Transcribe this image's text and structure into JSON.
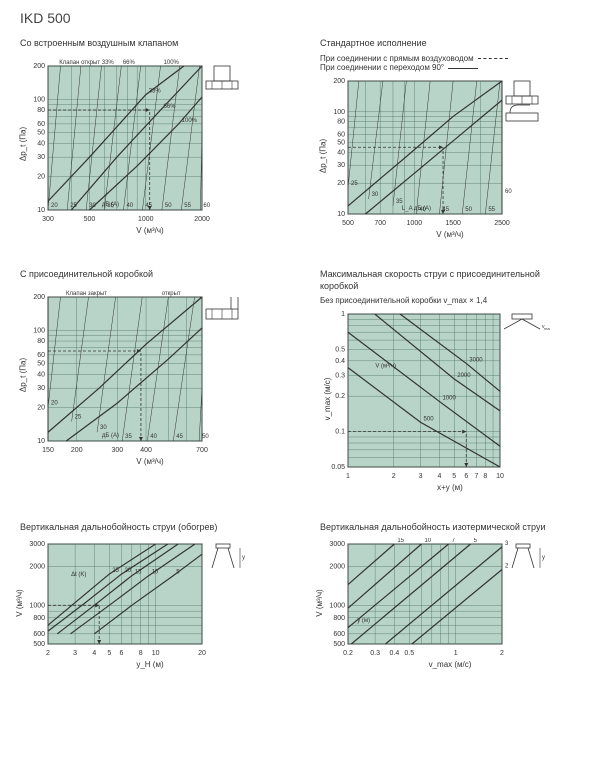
{
  "title": "IKD 500",
  "colors": {
    "grid_bg": "#b8d4c8",
    "grid_line": "#4a7060",
    "grid_border": "#333333",
    "curve": "#333333",
    "text": "#333333"
  },
  "charts": {
    "c1": {
      "title": "Со встроенным воздушным клапаном",
      "header_labels": [
        "Клапан открыт 33%",
        "66%",
        "100%"
      ],
      "ylabel": "Δp_t (Па)",
      "xlabel": "V (м³/ч)",
      "ytype": "log",
      "xtype": "log",
      "ylim": [
        10,
        200
      ],
      "xlim": [
        300,
        2000
      ],
      "yticks": [
        10,
        20,
        30,
        40,
        50,
        60,
        80,
        100,
        200
      ],
      "xticks": [
        300,
        500,
        1000,
        2000
      ],
      "series": [
        {
          "label": "33%",
          "points": [
            [
              300,
              12
            ],
            [
              500,
              30
            ],
            [
              1000,
              110
            ],
            [
              1600,
              200
            ]
          ]
        },
        {
          "label": "66%",
          "points": [
            [
              400,
              10
            ],
            [
              700,
              30
            ],
            [
              1200,
              80
            ],
            [
              2000,
              200
            ]
          ]
        },
        {
          "label": "100%",
          "points": [
            [
              500,
              10
            ],
            [
              900,
              25
            ],
            [
              1500,
              60
            ],
            [
              2000,
              105
            ]
          ]
        }
      ],
      "noise_curves": [
        {
          "label": "20",
          "points": [
            [
              300,
              10
            ],
            [
              350,
              200
            ]
          ]
        },
        {
          "label": "25",
          "points": [
            [
              380,
              10
            ],
            [
              450,
              200
            ]
          ]
        },
        {
          "label": "30",
          "points": [
            [
              480,
              10
            ],
            [
              580,
              200
            ]
          ]
        },
        {
          "label": "35",
          "points": [
            [
              600,
              10
            ],
            [
              740,
              200
            ]
          ]
        },
        {
          "label": "40",
          "points": [
            [
              760,
              10
            ],
            [
              940,
              200
            ]
          ]
        },
        {
          "label": "45",
          "points": [
            [
              960,
              10
            ],
            [
              1200,
              200
            ]
          ]
        },
        {
          "label": "50",
          "points": [
            [
              1220,
              10
            ],
            [
              1520,
              200
            ]
          ]
        },
        {
          "label": "55",
          "points": [
            [
              1550,
              10
            ],
            [
              1940,
              200
            ]
          ]
        },
        {
          "label": "60",
          "points": [
            [
              1960,
              10
            ],
            [
              2000,
              50
            ]
          ]
        }
      ],
      "dashed_example": {
        "h": [
          300,
          80,
          1050,
          80
        ],
        "v": [
          1050,
          10,
          1050,
          80
        ]
      },
      "db_label": "дБ (А)"
    },
    "c2": {
      "title": "Стандартное исполнение",
      "subtitle1": "При соединении с прямым воздуховодом",
      "subtitle2": "При соединении с переходом 90°",
      "ylabel": "Δp_t (Па)",
      "xlabel": "V (м³/ч)",
      "ytype": "log",
      "xtype": "log",
      "ylim": [
        10,
        200
      ],
      "xlim": [
        500,
        2500
      ],
      "yticks": [
        10,
        20,
        30,
        40,
        50,
        60,
        80,
        100,
        200
      ],
      "xticks": [
        500,
        700,
        1000,
        1500,
        2500
      ],
      "series": [
        {
          "style": "solid",
          "points": [
            [
              500,
              12
            ],
            [
              900,
              35
            ],
            [
              1500,
              90
            ],
            [
              2500,
              200
            ]
          ]
        },
        {
          "style": "solid",
          "points": [
            [
              600,
              10
            ],
            [
              1000,
              25
            ],
            [
              1700,
              65
            ],
            [
              2500,
              130
            ]
          ]
        }
      ],
      "noise_curves": [
        {
          "label": "25",
          "points": [
            [
              500,
              18
            ],
            [
              560,
              200
            ]
          ]
        },
        {
          "label": "30",
          "points": [
            [
              620,
              14
            ],
            [
              720,
              200
            ]
          ]
        },
        {
          "label": "35",
          "points": [
            [
              800,
              12
            ],
            [
              920,
              200
            ]
          ]
        },
        {
          "label": "40",
          "points": [
            [
              1020,
              10
            ],
            [
              1180,
              200
            ]
          ]
        },
        {
          "label": "45",
          "points": [
            [
              1300,
              10
            ],
            [
              1500,
              200
            ]
          ]
        },
        {
          "label": "50",
          "points": [
            [
              1650,
              10
            ],
            [
              1920,
              200
            ]
          ]
        },
        {
          "label": "55",
          "points": [
            [
              2100,
              10
            ],
            [
              2450,
              200
            ]
          ]
        },
        {
          "label": "60",
          "points": [
            [
              2500,
              15
            ],
            [
              2500,
              16
            ]
          ]
        }
      ],
      "dashed_example": {
        "h": [
          500,
          45,
          1350,
          45
        ],
        "v": [
          1350,
          10,
          1350,
          45
        ]
      },
      "db_label": "L_A дБ (А)"
    },
    "c3": {
      "title": "С присоединительной коробкой",
      "header_labels": [
        "Клапан закрыт",
        "открыт"
      ],
      "ylabel": "Δp_t (Па)",
      "xlabel": "V (м³/ч)",
      "ytype": "log",
      "xtype": "log",
      "ylim": [
        10,
        200
      ],
      "xlim": [
        150,
        700
      ],
      "yticks": [
        10,
        20,
        30,
        40,
        50,
        60,
        80,
        100,
        200
      ],
      "xticks": [
        150,
        200,
        300,
        400,
        700
      ],
      "series": [
        {
          "points": [
            [
              150,
              12
            ],
            [
              250,
              30
            ],
            [
              400,
              75
            ],
            [
              700,
              200
            ]
          ]
        },
        {
          "points": [
            [
              180,
              10
            ],
            [
              300,
              22
            ],
            [
              500,
              55
            ],
            [
              700,
              105
            ]
          ]
        }
      ],
      "noise_curves": [
        {
          "label": "20",
          "points": [
            [
              150,
              20
            ],
            [
              170,
              200
            ]
          ]
        },
        {
          "label": "25",
          "points": [
            [
              190,
              15
            ],
            [
              225,
              200
            ]
          ]
        },
        {
          "label": "30",
          "points": [
            [
              245,
              12
            ],
            [
              295,
              200
            ]
          ]
        },
        {
          "label": "35",
          "points": [
            [
              315,
              10
            ],
            [
              385,
              200
            ]
          ]
        },
        {
          "label": "40",
          "points": [
            [
              405,
              10
            ],
            [
              500,
              200
            ]
          ]
        },
        {
          "label": "45",
          "points": [
            [
              525,
              10
            ],
            [
              650,
              200
            ]
          ]
        },
        {
          "label": "50",
          "points": [
            [
              680,
              10
            ],
            [
              700,
              30
            ]
          ]
        }
      ],
      "dashed_example": {
        "h": [
          150,
          65,
          380,
          65
        ],
        "v": [
          380,
          10,
          380,
          65
        ]
      },
      "db_label": "дБ (А)"
    },
    "c4": {
      "title": "Максимальная скорость струи с присоединительной коробкой",
      "subtitle": "Без присоединительной коробки v_max × 1,4",
      "ylabel": "v_max (м/с)",
      "xlabel": "x+y (м)",
      "ytype": "log",
      "xtype": "log",
      "ylim": [
        0.05,
        1
      ],
      "xlim": [
        1,
        10
      ],
      "yticks": [
        0.05,
        0.1,
        0.2,
        0.3,
        0.4,
        0.5,
        1
      ],
      "xticks": [
        1,
        2,
        3,
        4,
        5,
        6,
        7,
        8,
        10
      ],
      "series": [
        {
          "label": "500",
          "points": [
            [
              1,
              0.35
            ],
            [
              3,
              0.12
            ],
            [
              10,
              0.05
            ]
          ]
        },
        {
          "label": "1000",
          "points": [
            [
              1,
              0.7
            ],
            [
              4,
              0.18
            ],
            [
              10,
              0.075
            ]
          ]
        },
        {
          "label": "2000",
          "points": [
            [
              1.5,
              1
            ],
            [
              5,
              0.28
            ],
            [
              10,
              0.15
            ]
          ]
        },
        {
          "label": "3000",
          "points": [
            [
              2.2,
              1
            ],
            [
              6,
              0.38
            ],
            [
              10,
              0.22
            ]
          ]
        }
      ],
      "v_label": "V (м³/ч)",
      "dashed_example": {
        "h": [
          1,
          0.1,
          6,
          0.1
        ],
        "v": [
          6,
          0.05,
          6,
          0.1
        ]
      }
    },
    "c5": {
      "title": "Вертикальная дальнобойность струи (обогрев)",
      "ylabel": "V (м³/ч)",
      "xlabel": "y_H (м)",
      "ytype": "log",
      "xtype": "log",
      "ylim": [
        500,
        3000
      ],
      "xlim": [
        2,
        20
      ],
      "yticks": [
        500,
        600,
        800,
        1000,
        2000,
        3000
      ],
      "xticks": [
        2,
        3,
        4,
        5,
        6,
        8,
        10,
        20
      ],
      "dt_label": "Δt (K)",
      "series": [
        {
          "label": "25",
          "points": [
            [
              2,
              700
            ],
            [
              3,
              1050
            ],
            [
              5,
              1750
            ],
            [
              10,
              3000
            ]
          ]
        },
        {
          "label": "20",
          "points": [
            [
              2,
              630
            ],
            [
              3.5,
              1050
            ],
            [
              6,
              1750
            ],
            [
              12,
              3000
            ]
          ]
        },
        {
          "label": "15",
          "points": [
            [
              2.3,
              600
            ],
            [
              4,
              1000
            ],
            [
              7,
              1700
            ],
            [
              14,
              3000
            ]
          ]
        },
        {
          "label": "10",
          "points": [
            [
              2.8,
              600
            ],
            [
              5,
              1000
            ],
            [
              9,
              1700
            ],
            [
              18,
              3000
            ]
          ]
        },
        {
          "label": "5",
          "points": [
            [
              4,
              600
            ],
            [
              7,
              1000
            ],
            [
              13,
              1700
            ],
            [
              20,
              2500
            ]
          ]
        }
      ],
      "dashed_example": {
        "h": [
          2,
          1000,
          4.3,
          1000
        ],
        "v": [
          4.3,
          500,
          4.3,
          1000
        ]
      }
    },
    "c6": {
      "title": "Вертикальная дальнобойность изотермической струи",
      "ylabel": "V (м³/ч)",
      "xlabel": "v_max (м/с)",
      "ytype": "log",
      "xtype": "log",
      "ylim": [
        500,
        3000
      ],
      "xlim": [
        0.2,
        2
      ],
      "yticks": [
        500,
        600,
        800,
        1000,
        2000,
        3000
      ],
      "xticks": [
        0.2,
        0.3,
        0.4,
        0.5,
        1,
        2
      ],
      "y_label_inner": "y (м)",
      "series": [
        {
          "label": "15",
          "points": [
            [
              0.2,
              1450
            ],
            [
              0.4,
              3000
            ]
          ]
        },
        {
          "label": "10",
          "points": [
            [
              0.2,
              950
            ],
            [
              0.6,
              3000
            ]
          ]
        },
        {
          "label": "7",
          "points": [
            [
              0.2,
              670
            ],
            [
              0.9,
              3000
            ]
          ]
        },
        {
          "label": "5",
          "points": [
            [
              0.21,
              500
            ],
            [
              1.25,
              3000
            ]
          ]
        },
        {
          "label": "3",
          "points": [
            [
              0.35,
              500
            ],
            [
              2,
              2850
            ]
          ]
        },
        {
          "label": "2",
          "points": [
            [
              0.52,
              500
            ],
            [
              2,
              1900
            ]
          ]
        }
      ],
      "dashed_example": {}
    }
  }
}
